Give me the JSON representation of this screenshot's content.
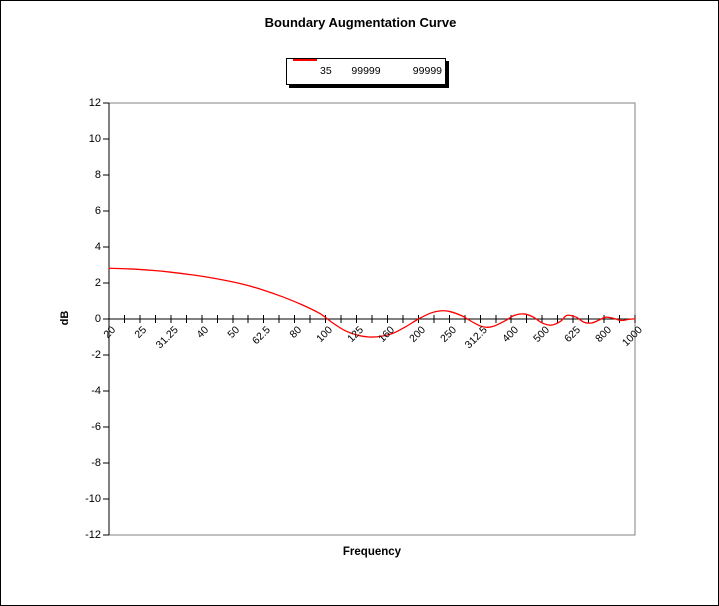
{
  "chart_data": {
    "type": "line",
    "title": "Boundary Augmentation Curve",
    "xlabel": "Frequency",
    "ylabel": "dB",
    "ylim": [
      -12,
      12
    ],
    "y_tick_step": 2,
    "y_ticks": [
      "12",
      "10",
      "8",
      "6",
      "4",
      "2",
      "0",
      "-2",
      "-4",
      "-6",
      "-8",
      "-10",
      "-12"
    ],
    "x_categories": [
      "20",
      "25",
      "31.25",
      "40",
      "50",
      "62.5",
      "80",
      "100",
      "125",
      "160",
      "200",
      "250",
      "312.5",
      "400",
      "500",
      "625",
      "800",
      "1000"
    ],
    "x_minor_ticks_per_interval": 2,
    "grid": "off",
    "legend_position": "top-center",
    "series": [
      {
        "name": "35",
        "color": "#ff0000",
        "points_u_db": [
          [
            0,
            2.82
          ],
          [
            0.7,
            2.78
          ],
          [
            1.4,
            2.7
          ],
          [
            2,
            2.6
          ],
          [
            2.6,
            2.47
          ],
          [
            3.2,
            2.32
          ],
          [
            3.8,
            2.13
          ],
          [
            4.4,
            1.9
          ],
          [
            5,
            1.6
          ],
          [
            5.6,
            1.24
          ],
          [
            6.2,
            0.82
          ],
          [
            6.8,
            0.32
          ],
          [
            7.2,
            -0.18
          ],
          [
            7.6,
            -0.62
          ],
          [
            8,
            -0.88
          ],
          [
            8.4,
            -1.0
          ],
          [
            8.8,
            -0.96
          ],
          [
            9.2,
            -0.78
          ],
          [
            9.6,
            -0.42
          ],
          [
            10,
            0.0
          ],
          [
            10.4,
            0.33
          ],
          [
            10.7,
            0.45
          ],
          [
            11,
            0.42
          ],
          [
            11.4,
            0.18
          ],
          [
            11.8,
            -0.22
          ],
          [
            12.1,
            -0.44
          ],
          [
            12.4,
            -0.42
          ],
          [
            12.8,
            -0.1
          ],
          [
            13.1,
            0.2
          ],
          [
            13.4,
            0.28
          ],
          [
            13.7,
            0.12
          ],
          [
            14,
            -0.22
          ],
          [
            14.3,
            -0.34
          ],
          [
            14.6,
            -0.12
          ],
          [
            14.8,
            0.2
          ],
          [
            15.1,
            0.1
          ],
          [
            15.35,
            -0.18
          ],
          [
            15.6,
            -0.22
          ],
          [
            15.85,
            -0.05
          ],
          [
            16.05,
            0.1
          ],
          [
            16.3,
            0.04
          ],
          [
            16.55,
            -0.08
          ],
          [
            16.8,
            -0.02
          ],
          [
            17,
            0.01
          ]
        ]
      }
    ]
  },
  "legend": {
    "series_label": "35",
    "value1": "99999",
    "value2": "99999",
    "line_color": "#ff0000"
  },
  "colors": {
    "curve": "#ff0000",
    "axis": "#000000",
    "plot_border": "#808080",
    "background": "#ffffff"
  }
}
